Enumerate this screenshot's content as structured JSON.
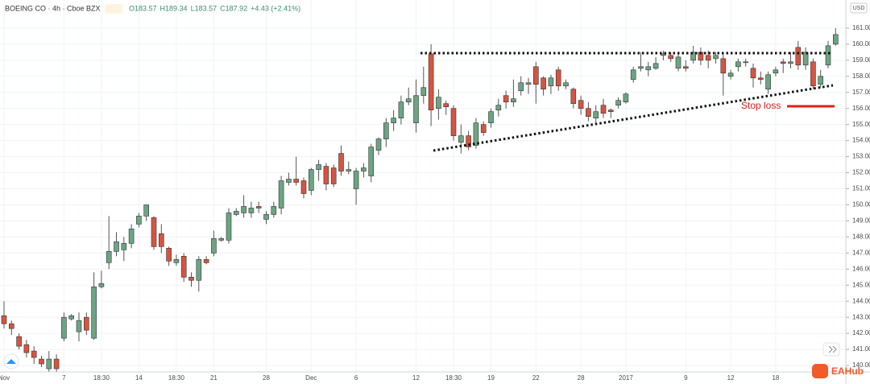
{
  "chart_data": {
    "type": "candlestick",
    "title": "BOEING CO · 4h · Cboe BZX",
    "quote": [
      "O183.57",
      "H189.34",
      "L183.57",
      "C187.92",
      "+4.43 (+2.41%)"
    ],
    "currency": "USD",
    "annotation": "Stop loss",
    "watermark": "EAHub",
    "up_color": "#6ba583",
    "down_color": "#d75442",
    "grid": true,
    "categories": [
      "Nov",
      null,
      null,
      null,
      null,
      null,
      null,
      null,
      "7",
      null,
      null,
      null,
      null,
      "18:30",
      null,
      null,
      null,
      null,
      "14",
      null,
      null,
      null,
      null,
      "18:30",
      null,
      null,
      null,
      null,
      "21",
      null,
      null,
      null,
      null,
      null,
      null,
      "28",
      null,
      null,
      null,
      null,
      null,
      "Dec",
      null,
      null,
      null,
      null,
      null,
      "6",
      null,
      null,
      null,
      null,
      null,
      null,
      null,
      "12",
      null,
      null,
      null,
      null,
      "18:30",
      null,
      null,
      null,
      null,
      "19",
      null,
      null,
      null,
      null,
      null,
      "22",
      null,
      null,
      null,
      null,
      null,
      "28",
      null,
      null,
      null,
      null,
      null,
      "2017",
      null,
      null,
      null,
      null,
      null,
      null,
      null,
      "9",
      null,
      null,
      null,
      null,
      null,
      "12",
      null,
      null,
      null,
      null,
      null,
      "18",
      null,
      null,
      null,
      null,
      null,
      null,
      null,
      null
    ],
    "open": [
      143.1,
      142.6,
      141.8,
      141.3,
      140.9,
      140.4,
      139.8,
      140.4,
      141.7,
      142.9,
      142.1,
      143.0,
      141.7,
      144.9,
      146.4,
      147.1,
      147.2,
      147.6,
      148.8,
      149.3,
      149.2,
      148.2,
      147.3,
      146.4,
      146.8,
      145.5,
      145.3,
      146.6,
      147.0,
      147.8,
      147.8,
      149.4,
      149.5,
      149.5,
      149.9,
      149.1,
      149.4,
      149.8,
      151.4,
      151.6,
      151.5,
      150.9,
      152.2,
      152.4,
      152.3,
      153.2,
      152.1,
      151.0,
      152.1,
      151.8,
      153.4,
      154.1,
      155.1,
      155.4,
      156.4,
      155.1,
      156.8,
      159.4,
      156.0,
      156.3,
      156.0,
      153.9,
      154.3,
      153.7,
      155.0,
      155.1,
      155.9,
      156.8,
      156.4,
      157.1,
      157.5,
      158.6,
      157.9,
      157.4,
      158.4,
      157.4,
      157.2,
      156.5,
      156.0,
      155.4,
      156.2,
      155.9,
      156.2,
      156.4,
      157.8,
      158.5,
      158.4,
      158.5,
      159.3,
      159.3,
      158.5,
      158.6,
      159.0,
      159.5,
      159.3,
      159.1,
      159.1,
      158.0,
      158.6,
      158.9,
      158.5,
      157.9,
      157.2,
      158.2,
      158.9,
      158.8,
      159.8,
      158.7,
      158.9,
      157.5,
      158.7,
      160.0
    ],
    "high": [
      144,
      142.8,
      142,
      141.6,
      141.2,
      140.6,
      140.9,
      140.7,
      143.3,
      143.2,
      143.3,
      143.3,
      145.8,
      145.9,
      149.3,
      148.3,
      148.0,
      148.8,
      149.5,
      150.0,
      149.3,
      148.8,
      147.4,
      146.9,
      147.0,
      145.8,
      146.8,
      146.8,
      148.4,
      148.0,
      149.8,
      149.8,
      150.6,
      150.2,
      150.2,
      149.6,
      150.2,
      151.8,
      152.0,
      153.0,
      151.7,
      152.3,
      152.8,
      152.6,
      152.5,
      153.7,
      152.7,
      152.3,
      152.6,
      153.8,
      154.2,
      155.4,
      155.9,
      156.8,
      157.3,
      157.8,
      158.6,
      160.0,
      157.2,
      156.5,
      156.2,
      155.0,
      154.6,
      155.4,
      155.2,
      156.0,
      156.6,
      157.1,
      157.8,
      158.0,
      157.9,
      158.9,
      158.0,
      158.1,
      158.6,
      157.8,
      157.3,
      156.8,
      156.4,
      156.2,
      156.6,
      156.0,
      156.7,
      157.0,
      158.6,
      159.5,
      158.9,
      159.2,
      159.6,
      159.5,
      159.4,
      159.0,
      159.9,
      159.8,
      159.6,
      159.5,
      159.4,
      158.4,
      159.1,
      159.1,
      158.8,
      158.3,
      158.3,
      158.6,
      159.1,
      159.5,
      160.2,
      159.8,
      159.1,
      158.4,
      160.2,
      161.0
    ],
    "low": [
      142.3,
      141.9,
      141,
      140.5,
      140.1,
      139.9,
      139.6,
      139.6,
      141.5,
      142.8,
      141.5,
      141.9,
      141.6,
      144.8,
      146.0,
      146.8,
      146.5,
      147.3,
      148.6,
      149.0,
      147.2,
      147.0,
      146.2,
      146.2,
      145.2,
      144.9,
      144.6,
      146.3,
      146.8,
      147.7,
      147.6,
      149.3,
      149.2,
      149.2,
      149.5,
      148.8,
      149.2,
      149.4,
      151.2,
      151.2,
      150.4,
      150.6,
      151.5,
      150.9,
      151.1,
      151.8,
      151.9,
      150.0,
      151.7,
      151.4,
      153.1,
      153.6,
      154.6,
      155.0,
      156.2,
      154.5,
      156.3,
      154.9,
      155.3,
      155.6,
      154.0,
      153.2,
      153.4,
      153.5,
      154.3,
      154.8,
      155.5,
      156.0,
      156.1,
      156.8,
      156.9,
      156.3,
      156.8,
      156.9,
      157.1,
      157.2,
      156.0,
      155.6,
      155.2,
      155.1,
      155.4,
      155.4,
      156.0,
      156.3,
      157.6,
      158.3,
      158.0,
      158.4,
      159.0,
      158.9,
      158.3,
      158.3,
      158.8,
      158.7,
      158.5,
      158.8,
      156.8,
      157.8,
      158.3,
      158.6,
      157.3,
      157.5,
      156.9,
      158.0,
      158.2,
      158.5,
      158.4,
      158.4,
      157.2,
      157.3,
      158.5,
      159.9
    ],
    "close": [
      142.6,
      142.3,
      141.2,
      140.8,
      140.5,
      140.1,
      140.4,
      139.8,
      143.0,
      143.1,
      142.8,
      142.2,
      144.9,
      145.1,
      147.1,
      147.7,
      147.6,
      148.5,
      149.3,
      150.0,
      147.4,
      147.4,
      146.5,
      146.6,
      145.5,
      145.3,
      146.6,
      146.4,
      147.9,
      147.9,
      149.5,
      149.6,
      149.9,
      149.8,
      149.8,
      149.4,
      149.9,
      151.5,
      151.6,
      151.4,
      150.7,
      152.2,
      152.5,
      151.3,
      151.3,
      152.1,
      152.2,
      152.1,
      152.3,
      153.6,
      154.1,
      155.1,
      155.4,
      156.4,
      156.6,
      156.8,
      157.3,
      155.9,
      156.7,
      156.1,
      154.3,
      154.3,
      153.6,
      155.1,
      154.5,
      155.8,
      156.2,
      156.4,
      156.6,
      157.6,
      157.6,
      157.5,
      157.2,
      157.9,
      157.4,
      157.6,
      156.3,
      156.0,
      155.5,
      155.8,
      155.7,
      155.8,
      156.5,
      156.9,
      158.4,
      158.6,
      158.6,
      158.8,
      159.4,
      159.1,
      159.2,
      158.5,
      159.5,
      159.0,
      159.0,
      159.3,
      158.2,
      158.2,
      158.9,
      158.9,
      157.9,
      157.8,
      158.1,
      158.4,
      158.8,
      158.9,
      158.7,
      159.5,
      157.4,
      158.0,
      159.9,
      160.6
    ],
    "ylim": [
      139.6,
      162.75
    ],
    "yticks": [
      {
        "value": 140,
        "label": "140.00"
      },
      {
        "value": 141,
        "label": "141.00"
      },
      {
        "value": 142,
        "label": "142.00"
      },
      {
        "value": 143,
        "label": "143.00"
      },
      {
        "value": 144,
        "label": "144.00"
      },
      {
        "value": 145,
        "label": "145.00"
      },
      {
        "value": 146,
        "label": "146.00"
      },
      {
        "value": 147,
        "label": "147.00"
      },
      {
        "value": 148,
        "label": "148.00"
      },
      {
        "value": 149,
        "label": "149.00"
      },
      {
        "value": 150,
        "label": "150.00"
      },
      {
        "value": 151,
        "label": "151.00"
      },
      {
        "value": 152,
        "label": "152.00"
      },
      {
        "value": 153,
        "label": "153.00"
      },
      {
        "value": 154,
        "label": "154.00"
      },
      {
        "value": 155,
        "label": "155.00"
      },
      {
        "value": 156,
        "label": "156.00"
      },
      {
        "value": 157,
        "label": "157.00"
      },
      {
        "value": 158,
        "label": "158.00"
      },
      {
        "value": 159,
        "label": "159.00"
      },
      {
        "value": 160,
        "label": "160.00"
      },
      {
        "value": 161,
        "label": "161.00"
      }
    ]
  }
}
